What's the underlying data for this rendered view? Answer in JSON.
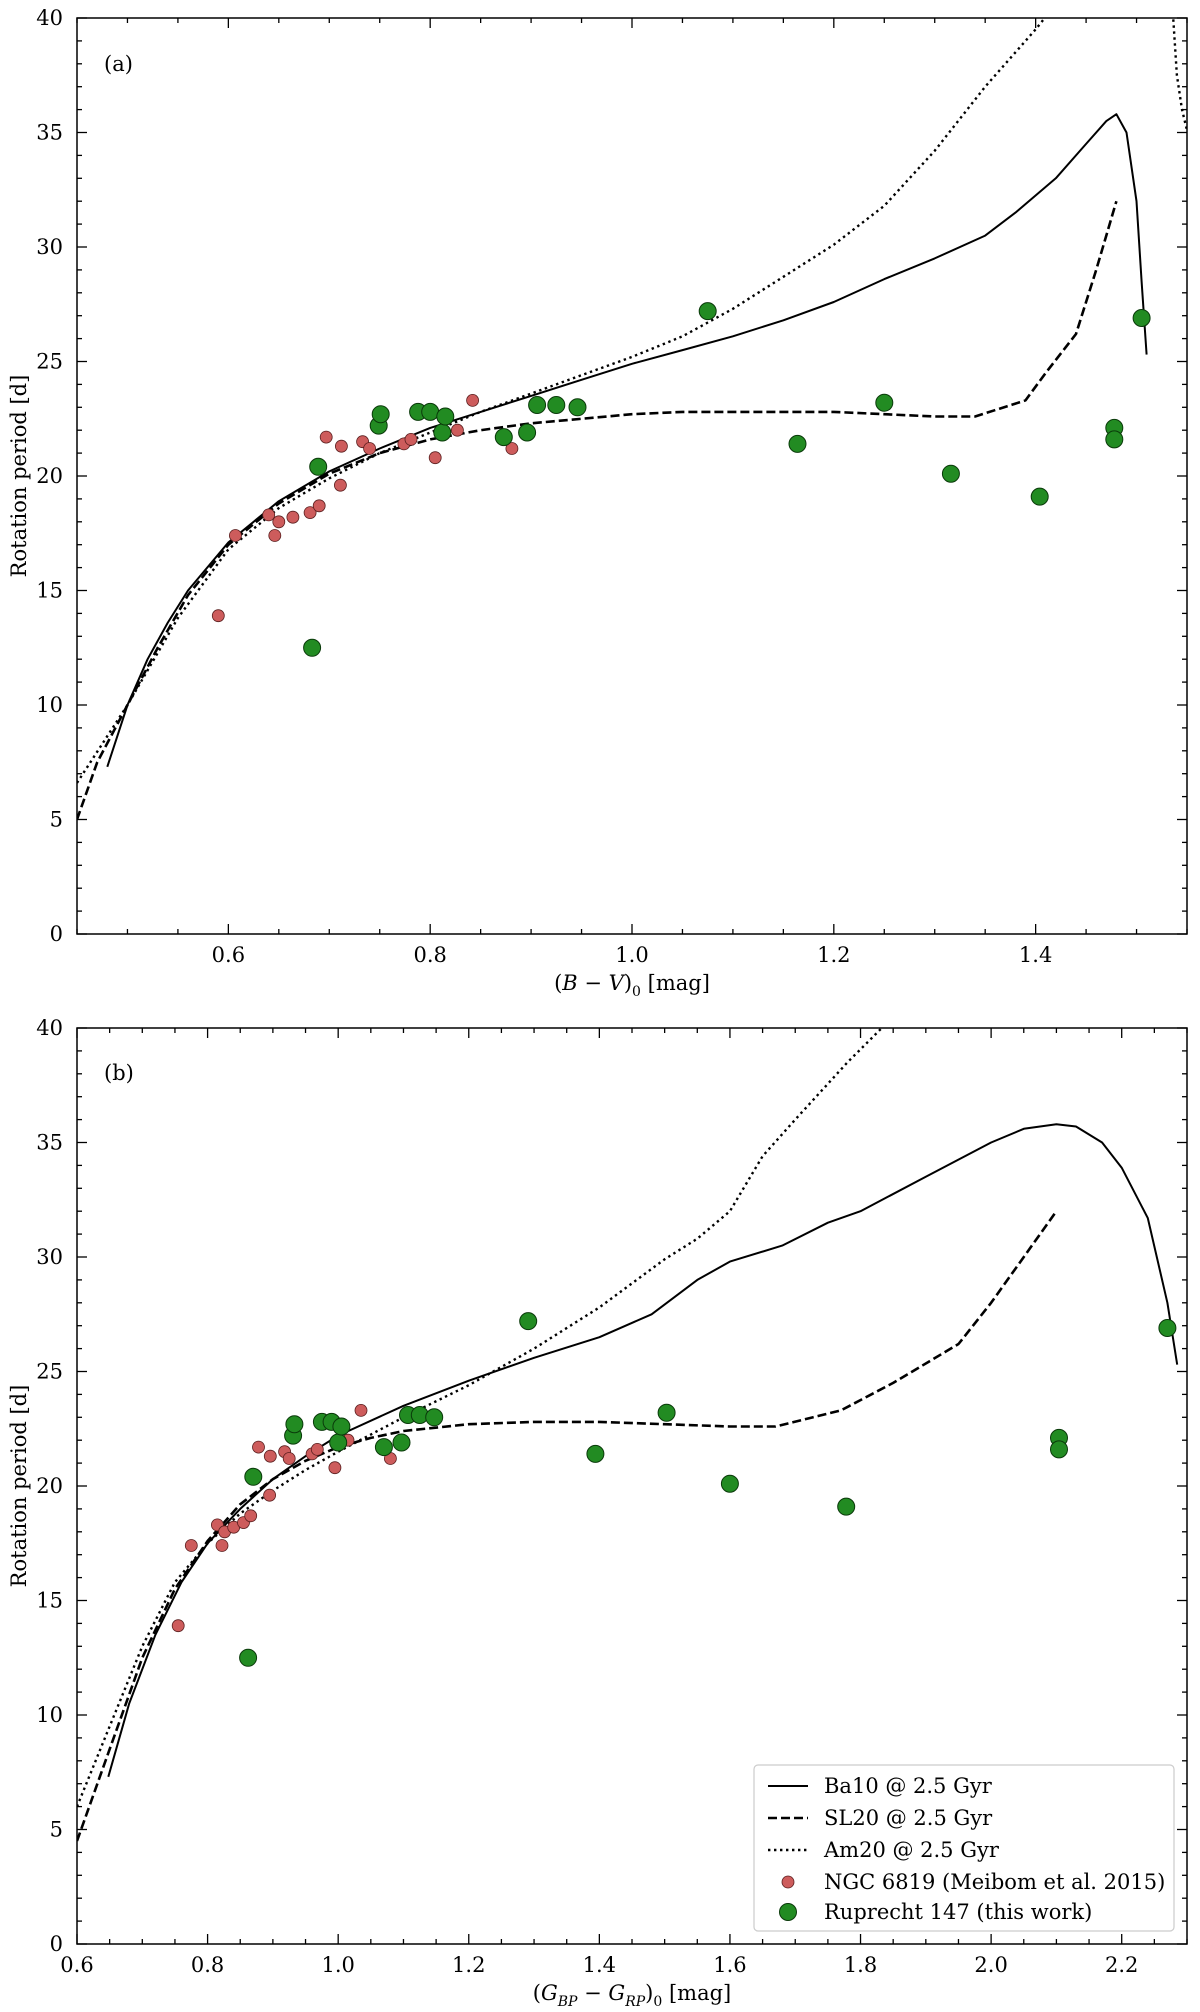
{
  "chart_data": [
    {
      "type": "scatter",
      "panel_label": "(a)",
      "xlabel": "(B − V)₀ [mag]",
      "ylabel": "Rotation period [d]",
      "xlim": [
        0.45,
        1.55
      ],
      "ylim": [
        0,
        40
      ],
      "xticks": [
        0.6,
        0.8,
        1.0,
        1.2,
        1.4
      ],
      "xtick_labels": [
        "0.6",
        "0.8",
        "1.0",
        "1.2",
        "1.4"
      ],
      "yticks": [
        0,
        5,
        10,
        15,
        20,
        25,
        30,
        35,
        40
      ],
      "ytick_labels": [
        "0",
        "5",
        "10",
        "15",
        "20",
        "25",
        "30",
        "35",
        "40"
      ],
      "grid": false,
      "legend": null,
      "series": [
        {
          "name": "Ba10 @ 2.5 Gyr",
          "kind": "line",
          "style": "solid",
          "x": [
            0.48,
            0.5,
            0.52,
            0.54,
            0.56,
            0.6,
            0.65,
            0.7,
            0.75,
            0.8,
            0.85,
            0.9,
            0.95,
            1.0,
            1.05,
            1.1,
            1.15,
            1.2,
            1.25,
            1.3,
            1.35,
            1.38,
            1.42,
            1.45,
            1.47,
            1.48,
            1.49,
            1.5,
            1.505,
            1.51
          ],
          "y": [
            7.3,
            10.0,
            12.0,
            13.6,
            15.0,
            17.1,
            18.9,
            20.2,
            21.2,
            22.1,
            22.8,
            23.5,
            24.2,
            24.9,
            25.5,
            26.1,
            26.8,
            27.6,
            28.6,
            29.5,
            30.5,
            31.5,
            33.0,
            34.5,
            35.5,
            35.8,
            35.0,
            32.0,
            28.5,
            25.3
          ]
        },
        {
          "name": "SL20 @ 2.5 Gyr",
          "kind": "line",
          "style": "dashed",
          "x": [
            0.45,
            0.47,
            0.5,
            0.53,
            0.56,
            0.6,
            0.65,
            0.7,
            0.75,
            0.8,
            0.85,
            0.9,
            0.95,
            1.0,
            1.05,
            1.1,
            1.15,
            1.2,
            1.25,
            1.3,
            1.34,
            1.39,
            1.41,
            1.44,
            1.46,
            1.48
          ],
          "y": [
            5.0,
            7.5,
            10.0,
            12.5,
            14.8,
            17.0,
            18.8,
            20.1,
            21.0,
            21.6,
            22.0,
            22.3,
            22.5,
            22.7,
            22.8,
            22.8,
            22.8,
            22.8,
            22.7,
            22.6,
            22.6,
            23.3,
            24.5,
            26.2,
            29.0,
            32.0
          ]
        },
        {
          "name": "Am20 @ 2.5 Gyr",
          "kind": "line",
          "style": "dotted",
          "x": [
            0.45,
            0.5,
            0.55,
            0.6,
            0.65,
            0.7,
            0.75,
            0.8,
            0.85,
            0.9,
            0.95,
            1.0,
            1.05,
            1.1,
            1.15,
            1.2,
            1.25,
            1.3,
            1.35,
            1.4,
            1.42
          ],
          "y": [
            6.6,
            10.0,
            13.8,
            16.8,
            18.6,
            19.9,
            21.0,
            21.9,
            22.8,
            23.6,
            24.4,
            25.2,
            26.1,
            27.3,
            28.7,
            30.1,
            31.8,
            34.2,
            37.0,
            39.5,
            40.6
          ]
        },
        {
          "name": "Am20 @ 2.5 Gyr (turn-down)",
          "kind": "line",
          "style": "dotted",
          "x": [
            1.536,
            1.54,
            1.545,
            1.55
          ],
          "y": [
            40.2,
            37.5,
            36.0,
            35.1
          ]
        },
        {
          "name": "NGC 6819 (Meibom et al. 2015)",
          "kind": "scatter",
          "marker": "small-circle",
          "color": "#cd5c5c",
          "points": [
            [
              0.59,
              13.9
            ],
            [
              0.607,
              17.4
            ],
            [
              0.64,
              18.3
            ],
            [
              0.646,
              17.4
            ],
            [
              0.65,
              18.0
            ],
            [
              0.664,
              18.2
            ],
            [
              0.681,
              18.4
            ],
            [
              0.69,
              18.7
            ],
            [
              0.697,
              21.7
            ],
            [
              0.711,
              19.6
            ],
            [
              0.712,
              21.3
            ],
            [
              0.733,
              21.5
            ],
            [
              0.74,
              21.2
            ],
            [
              0.774,
              21.4
            ],
            [
              0.781,
              21.6
            ],
            [
              0.805,
              20.8
            ],
            [
              0.827,
              22.0
            ],
            [
              0.842,
              23.3
            ],
            [
              0.881,
              21.2
            ]
          ]
        },
        {
          "name": "Ruprecht 147 (this work)",
          "kind": "scatter",
          "marker": "large-circle",
          "color": "#228b22",
          "points": [
            [
              0.683,
              12.5
            ],
            [
              0.689,
              20.4
            ],
            [
              0.749,
              22.2
            ],
            [
              0.751,
              22.7
            ],
            [
              0.788,
              22.8
            ],
            [
              0.8,
              22.8
            ],
            [
              0.812,
              21.9
            ],
            [
              0.815,
              22.6
            ],
            [
              0.873,
              21.7
            ],
            [
              0.896,
              21.9
            ],
            [
              0.906,
              23.1
            ],
            [
              0.925,
              23.1
            ],
            [
              0.946,
              23.0
            ],
            [
              1.075,
              27.2
            ],
            [
              1.164,
              21.4
            ],
            [
              1.25,
              23.2
            ],
            [
              1.316,
              20.1
            ],
            [
              1.404,
              19.1
            ],
            [
              1.478,
              22.1
            ],
            [
              1.478,
              21.6
            ],
            [
              1.505,
              26.9
            ]
          ]
        }
      ]
    },
    {
      "type": "scatter",
      "panel_label": "(b)",
      "xlabel": "(G_BP − G_RP)₀ [mag]",
      "ylabel": "Rotation period [d]",
      "xlim": [
        0.6,
        2.3
      ],
      "ylim": [
        0,
        40
      ],
      "xticks": [
        0.6,
        0.8,
        1.0,
        1.2,
        1.4,
        1.6,
        1.8,
        2.0,
        2.2
      ],
      "xtick_labels": [
        "0.6",
        "0.8",
        "1.0",
        "1.2",
        "1.4",
        "1.6",
        "1.8",
        "2.0",
        "2.2"
      ],
      "yticks": [
        0,
        5,
        10,
        15,
        20,
        25,
        30,
        35,
        40
      ],
      "ytick_labels": [
        "0",
        "5",
        "10",
        "15",
        "20",
        "25",
        "30",
        "35",
        "40"
      ],
      "grid": false,
      "legend": {
        "placement": "lower-right",
        "entries": [
          {
            "label": "Ba10 @ 2.5 Gyr",
            "style": "solid"
          },
          {
            "label": "SL20 @ 2.5 Gyr",
            "style": "dashed"
          },
          {
            "label": "Am20 @ 2.5 Gyr",
            "style": "dotted"
          },
          {
            "label": "NGC 6819 (Meibom et al. 2015)",
            "style": "small-circle",
            "color": "#cd5c5c"
          },
          {
            "label": "Ruprecht 147 (this work)",
            "style": "large-circle",
            "color": "#228b22"
          }
        ]
      },
      "series": [
        {
          "name": "Ba10 @ 2.5 Gyr",
          "kind": "line",
          "style": "solid",
          "x": [
            0.648,
            0.68,
            0.72,
            0.76,
            0.8,
            0.85,
            0.9,
            0.95,
            1.0,
            1.1,
            1.2,
            1.3,
            1.4,
            1.48,
            1.55,
            1.6,
            1.68,
            1.75,
            1.8,
            1.9,
            2.0,
            2.05,
            2.1,
            2.13,
            2.17,
            2.2,
            2.24,
            2.27,
            2.285
          ],
          "y": [
            7.3,
            10.5,
            13.5,
            15.8,
            17.5,
            19.0,
            20.3,
            21.3,
            22.2,
            23.5,
            24.6,
            25.6,
            26.5,
            27.5,
            29.0,
            29.8,
            30.5,
            31.5,
            32.0,
            33.5,
            35.0,
            35.6,
            35.8,
            35.7,
            35.0,
            33.9,
            31.7,
            28.0,
            25.3
          ]
        },
        {
          "name": "SL20 @ 2.5 Gyr",
          "kind": "line",
          "style": "dashed",
          "x": [
            0.6,
            0.65,
            0.7,
            0.75,
            0.8,
            0.85,
            0.9,
            0.95,
            1.0,
            1.05,
            1.1,
            1.2,
            1.3,
            1.4,
            1.5,
            1.6,
            1.67,
            1.77,
            1.85,
            1.95,
            2.0,
            2.05,
            2.1
          ],
          "y": [
            4.5,
            8.5,
            12.5,
            15.5,
            17.6,
            19.2,
            20.3,
            21.1,
            21.7,
            22.1,
            22.4,
            22.7,
            22.8,
            22.8,
            22.7,
            22.6,
            22.6,
            23.3,
            24.5,
            26.2,
            28.0,
            30.0,
            32.0
          ]
        },
        {
          "name": "Am20 @ 2.5 Gyr",
          "kind": "line",
          "style": "dotted",
          "x": [
            0.6,
            0.65,
            0.7,
            0.75,
            0.8,
            0.85,
            0.9,
            0.95,
            1.0,
            1.1,
            1.2,
            1.3,
            1.4,
            1.5,
            1.55,
            1.6,
            1.65,
            1.7,
            1.78,
            1.85
          ],
          "y": [
            6.0,
            9.5,
            13.0,
            15.8,
            17.5,
            18.8,
            19.8,
            20.7,
            21.5,
            23.0,
            24.4,
            26.0,
            27.8,
            29.9,
            30.8,
            32.0,
            34.4,
            36.0,
            38.5,
            40.5
          ]
        },
        {
          "name": "NGC 6819 (Meibom et al. 2015)",
          "kind": "scatter",
          "marker": "small-circle",
          "color": "#cd5c5c",
          "points": [
            [
              0.755,
              13.9
            ],
            [
              0.775,
              17.4
            ],
            [
              0.815,
              18.3
            ],
            [
              0.822,
              17.4
            ],
            [
              0.826,
              18.0
            ],
            [
              0.84,
              18.2
            ],
            [
              0.855,
              18.4
            ],
            [
              0.866,
              18.7
            ],
            [
              0.878,
              21.7
            ],
            [
              0.895,
              19.6
            ],
            [
              0.896,
              21.3
            ],
            [
              0.918,
              21.5
            ],
            [
              0.925,
              21.2
            ],
            [
              0.96,
              21.4
            ],
            [
              0.968,
              21.6
            ],
            [
              0.995,
              20.8
            ],
            [
              1.015,
              22.0
            ],
            [
              1.035,
              23.3
            ],
            [
              1.08,
              21.2
            ]
          ]
        },
        {
          "name": "Ruprecht 147 (this work)",
          "kind": "scatter",
          "marker": "large-circle",
          "color": "#228b22",
          "points": [
            [
              0.862,
              12.5
            ],
            [
              0.87,
              20.4
            ],
            [
              0.931,
              22.2
            ],
            [
              0.933,
              22.7
            ],
            [
              0.975,
              22.8
            ],
            [
              0.99,
              22.8
            ],
            [
              1.0,
              21.9
            ],
            [
              1.005,
              22.6
            ],
            [
              1.07,
              21.7
            ],
            [
              1.097,
              21.9
            ],
            [
              1.107,
              23.1
            ],
            [
              1.125,
              23.1
            ],
            [
              1.147,
              23.0
            ],
            [
              1.291,
              27.2
            ],
            [
              1.394,
              21.4
            ],
            [
              1.503,
              23.2
            ],
            [
              1.6,
              20.1
            ],
            [
              1.778,
              19.1
            ],
            [
              2.104,
              22.1
            ],
            [
              2.104,
              21.6
            ],
            [
              2.27,
              26.9
            ]
          ]
        }
      ]
    }
  ]
}
